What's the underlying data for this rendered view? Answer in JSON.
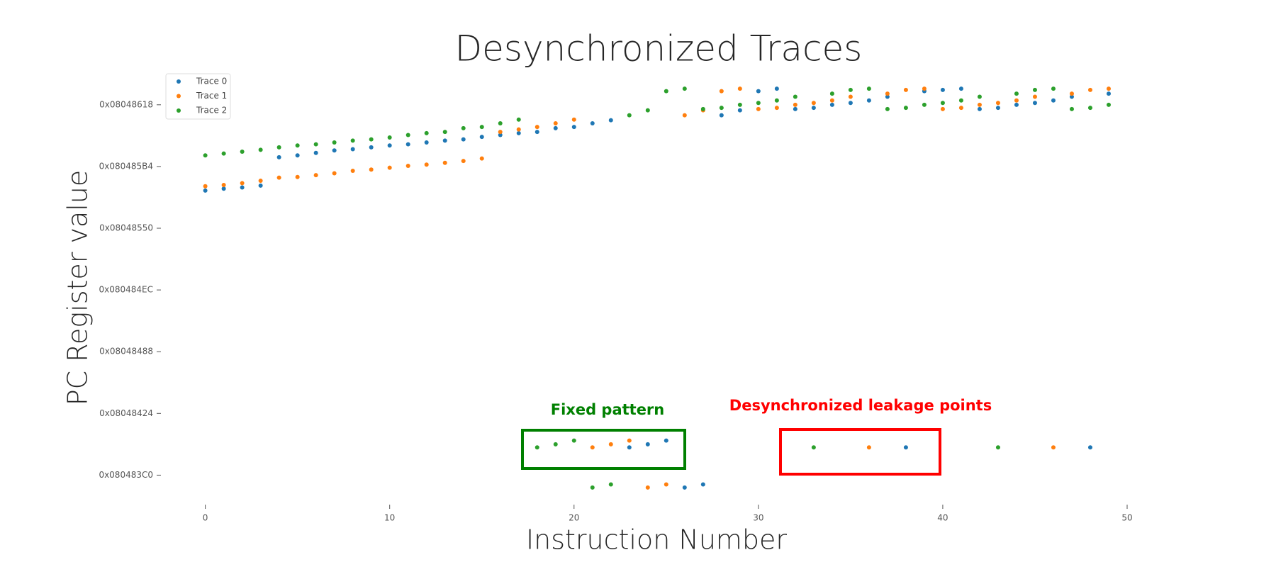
{
  "chart_data": {
    "type": "scatter",
    "title": "Desynchronized Traces",
    "x_label": "Instruction Number",
    "y_label": "PC Register value",
    "x": [
      0,
      1,
      2,
      3,
      4,
      5,
      6,
      7,
      8,
      9,
      10,
      11,
      12,
      13,
      14,
      15,
      16,
      17,
      18,
      19,
      20,
      21,
      22,
      23,
      24,
      25,
      26,
      27,
      28,
      29,
      30,
      31,
      32,
      33,
      34,
      35,
      36,
      37,
      38,
      39,
      40,
      41,
      42,
      43,
      44,
      45,
      46,
      47,
      48,
      49
    ],
    "series": [
      {
        "name": "Trace 0",
        "color": "#1f77b4",
        "values": [
          134514061,
          134514064,
          134514066,
          134514069,
          134514115,
          134514118,
          134514122,
          134514126,
          134514128,
          134514131,
          134514134,
          134514136,
          134514139,
          134514142,
          134514144,
          134514148,
          134514151,
          134514154,
          134514156,
          134514162,
          134514164,
          134514170,
          134514175,
          134513645,
          134513650,
          134513656,
          134513580,
          134513585,
          134514183,
          134514191,
          134514222,
          134514226,
          134514193,
          134514195,
          134514200,
          134514203,
          134514207,
          134514213,
          134513645,
          134514222,
          134514224,
          134514226,
          134514193,
          134514195,
          134514200,
          134514203,
          134514207,
          134514213,
          134513645,
          134514218
        ]
      },
      {
        "name": "Trace 1",
        "color": "#ff7f0e",
        "values": [
          134514068,
          134514070,
          134514073,
          134514077,
          134514082,
          134514083,
          134514086,
          134514089,
          134514093,
          134514095,
          134514098,
          134514101,
          134514103,
          134514106,
          134514109,
          134514113,
          134514156,
          134514160,
          134514164,
          134514170,
          134514176,
          134513645,
          134513650,
          134513656,
          134513580,
          134513585,
          134514183,
          134514191,
          134514222,
          134514226,
          134514193,
          134514195,
          134514200,
          134514203,
          134514207,
          134514213,
          134513645,
          134514218,
          134514224,
          134514226,
          134514193,
          134514195,
          134514200,
          134514203,
          134514207,
          134514213,
          134513645,
          134514218,
          134514224,
          134514226
        ]
      },
      {
        "name": "Trace 2",
        "color": "#2ca02c",
        "values": [
          134514118,
          134514121,
          134514124,
          134514127,
          134514131,
          134514134,
          134514136,
          134514139,
          134514142,
          134514144,
          134514147,
          134514151,
          134514154,
          134514156,
          134514162,
          134514164,
          134514170,
          134514176,
          134513645,
          134513650,
          134513656,
          134513580,
          134513585,
          134514183,
          134514191,
          134514222,
          134514226,
          134514193,
          134514195,
          134514200,
          134514203,
          134514207,
          134514213,
          134513645,
          134514218,
          134514224,
          134514226,
          134514193,
          134514195,
          134514200,
          134514203,
          134514207,
          134514213,
          134513645,
          134514218,
          134514224,
          134514226,
          134514193,
          134514195,
          134514200
        ]
      }
    ],
    "xlim": [
      -2,
      50
    ],
    "xticks": [
      0,
      10,
      20,
      30,
      40,
      50
    ],
    "ylim": [
      134513562,
      134514244
    ],
    "yticks": [
      {
        "value": 134513600,
        "label": "0x080483C0"
      },
      {
        "value": 134513700,
        "label": "0x08048424"
      },
      {
        "value": 134513800,
        "label": "0x08048488"
      },
      {
        "value": 134513900,
        "label": "0x080484EC"
      },
      {
        "value": 134514000,
        "label": "0x08048550"
      },
      {
        "value": 134514100,
        "label": "0x080485B4"
      },
      {
        "value": 134514200,
        "label": "0x08048618"
      }
    ],
    "legend": "upper left",
    "annotations": [
      {
        "text": "Fixed pattern",
        "color": "#008000"
      },
      {
        "text": "Desynchronized leakage points",
        "color": "#ff0000"
      }
    ]
  }
}
